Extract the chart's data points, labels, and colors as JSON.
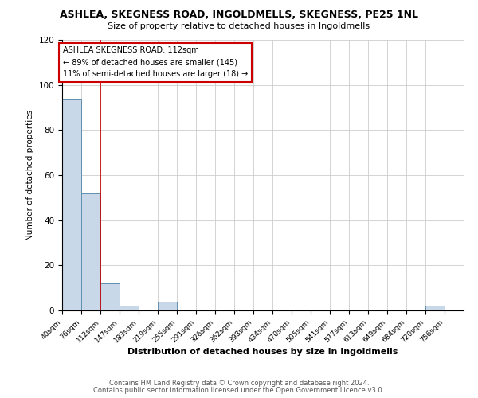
{
  "title": "ASHLEA, SKEGNESS ROAD, INGOLDMELLS, SKEGNESS, PE25 1NL",
  "subtitle": "Size of property relative to detached houses in Ingoldmells",
  "xlabel": "Distribution of detached houses by size in Ingoldmells",
  "ylabel": "Number of detached properties",
  "bins": [
    40,
    76,
    112,
    147,
    183,
    219,
    255,
    291,
    326,
    362,
    398,
    434,
    470,
    505,
    541,
    577,
    613,
    649,
    684,
    720,
    756
  ],
  "bin_labels": [
    "40sqm",
    "76sqm",
    "112sqm",
    "147sqm",
    "183sqm",
    "219sqm",
    "255sqm",
    "291sqm",
    "326sqm",
    "362sqm",
    "398sqm",
    "434sqm",
    "470sqm",
    "505sqm",
    "541sqm",
    "577sqm",
    "613sqm",
    "649sqm",
    "684sqm",
    "720sqm",
    "756sqm"
  ],
  "counts": [
    94,
    52,
    12,
    2,
    0,
    4,
    0,
    0,
    0,
    0,
    0,
    0,
    0,
    0,
    0,
    0,
    0,
    0,
    0,
    2,
    0
  ],
  "bar_color": "#c8d8e8",
  "bar_edge_color": "#6090b0",
  "property_size": 112,
  "vline_color": "#cc0000",
  "annotation_title": "ASHLEA SKEGNESS ROAD: 112sqm",
  "annotation_line1": "← 89% of detached houses are smaller (145)",
  "annotation_line2": "11% of semi-detached houses are larger (18) →",
  "annotation_box_color": "#ffffff",
  "annotation_box_edge": "#cc0000",
  "ylim": [
    0,
    120
  ],
  "yticks": [
    0,
    20,
    40,
    60,
    80,
    100,
    120
  ],
  "footnote1": "Contains HM Land Registry data © Crown copyright and database right 2024.",
  "footnote2": "Contains public sector information licensed under the Open Government Licence v3.0.",
  "background_color": "#ffffff",
  "grid_color": "#cccccc"
}
